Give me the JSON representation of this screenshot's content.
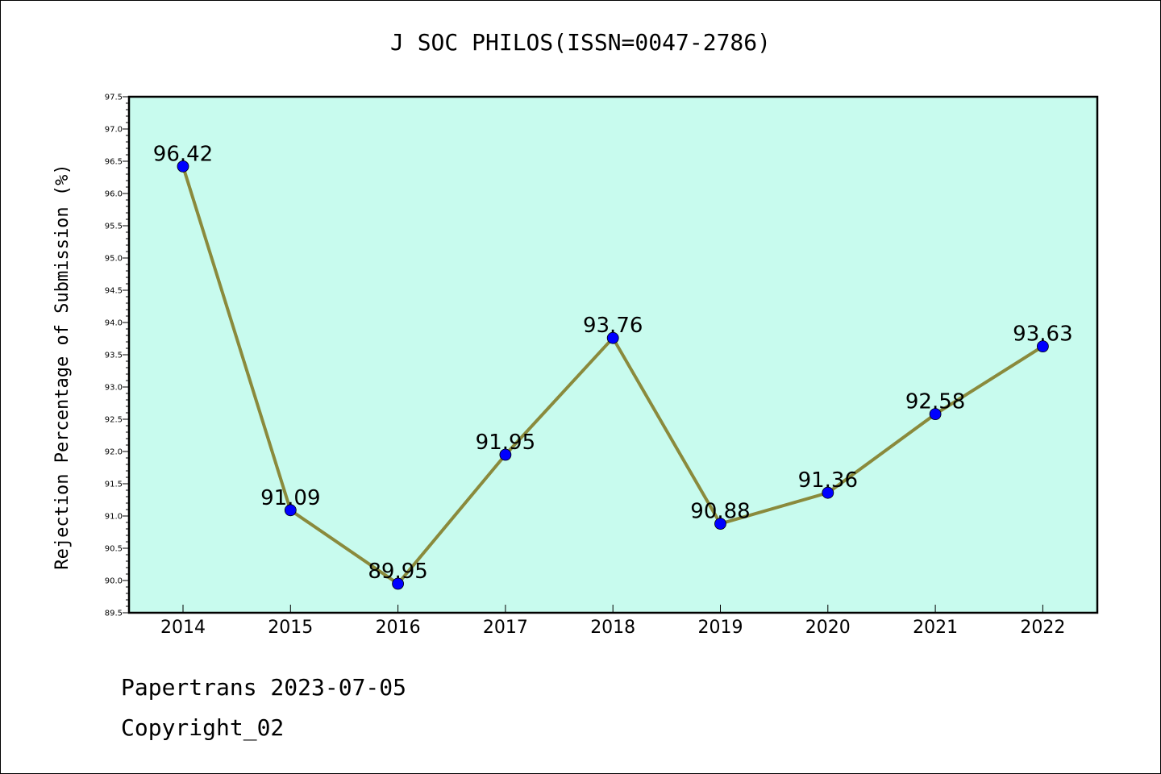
{
  "chart_data": {
    "type": "line",
    "title": "J SOC PHILOS(ISSN=0047-2786)",
    "xlabel": "",
    "ylabel": "Rejection Percentage of Submission (%)",
    "categories": [
      "2014",
      "2015",
      "2016",
      "2017",
      "2018",
      "2019",
      "2020",
      "2021",
      "2022"
    ],
    "series": [
      {
        "values": [
          96.42,
          91.09,
          89.95,
          91.95,
          93.76,
          90.88,
          91.36,
          92.58,
          93.63
        ]
      }
    ],
    "data_labels": [
      "96.42",
      "91.09",
      "89.95",
      "91.95",
      "93.76",
      "90.88",
      "91.36",
      "92.58",
      "93.63"
    ],
    "yticks": [
      "89.5",
      "90.0",
      "90.5",
      "91.0",
      "91.5",
      "92.0",
      "92.5",
      "93.0",
      "93.5",
      "94.0",
      "94.5",
      "95.0",
      "95.5",
      "96.0",
      "96.5",
      "97.0",
      "97.5"
    ],
    "ylim": [
      89.5,
      97.5
    ],
    "grid": false,
    "colors": {
      "plot_background": "#c8fbee",
      "line": "#8a8a3c",
      "marker": "#0000ff"
    }
  },
  "footer": {
    "line1": "Papertrans 2023-07-05",
    "line2": "Copyright_02"
  }
}
